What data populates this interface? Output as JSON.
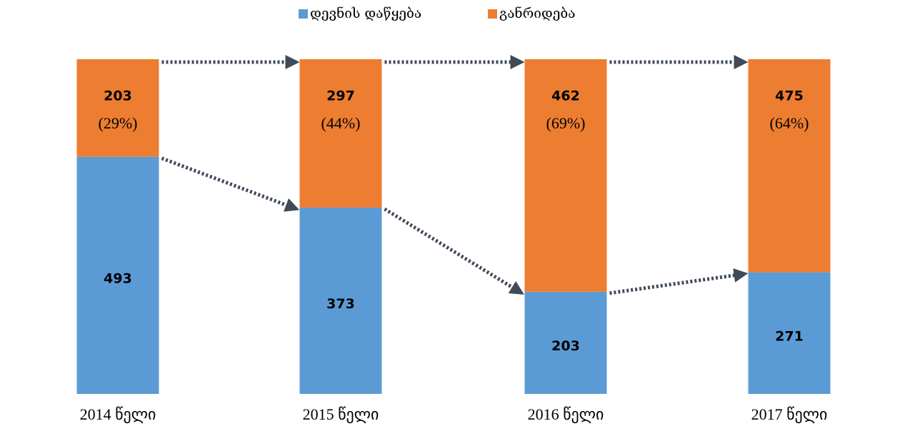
{
  "chart_data": {
    "type": "bar",
    "stacked": "percent",
    "categories": [
      "2014 წელი",
      "2015 წელი",
      "2016 წელი",
      "2017 წელი"
    ],
    "series": [
      {
        "name": "დევნის დაწყება",
        "color": "#5b9bd5",
        "values": [
          493,
          373,
          203,
          271
        ]
      },
      {
        "name": "განრიდება",
        "color": "#ed7d31",
        "values": [
          203,
          297,
          462,
          475
        ],
        "percents": [
          29,
          44,
          69,
          64
        ],
        "percent_labels": [
          "(29%)",
          "(44%)",
          "(69%)",
          "(64%)"
        ]
      }
    ],
    "legend": "top"
  }
}
